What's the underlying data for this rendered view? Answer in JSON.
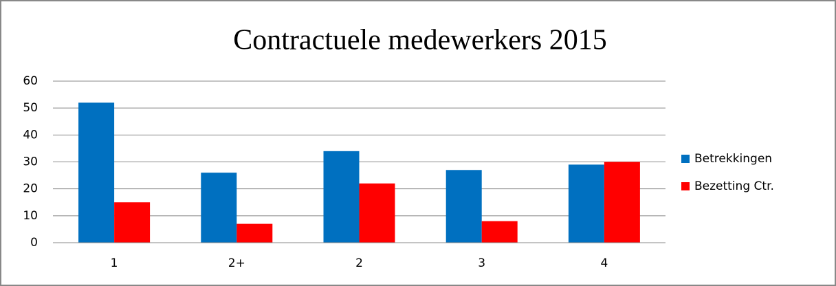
{
  "chart_data": {
    "type": "bar",
    "title": "Contractuele medewerkers 2015",
    "categories": [
      "1",
      "2+",
      "2",
      "3",
      "4"
    ],
    "series": [
      {
        "name": "Betrekkingen",
        "color": "#0070c0",
        "values": [
          52,
          26,
          34,
          27,
          29
        ]
      },
      {
        "name": "Bezetting Ctr.",
        "color": "#ff0000",
        "values": [
          15,
          7,
          22,
          8,
          30
        ]
      }
    ],
    "ylim": [
      0,
      60
    ],
    "yticks": [
      0,
      10,
      20,
      30,
      40,
      50,
      60
    ],
    "grid": true,
    "legend": "right"
  }
}
